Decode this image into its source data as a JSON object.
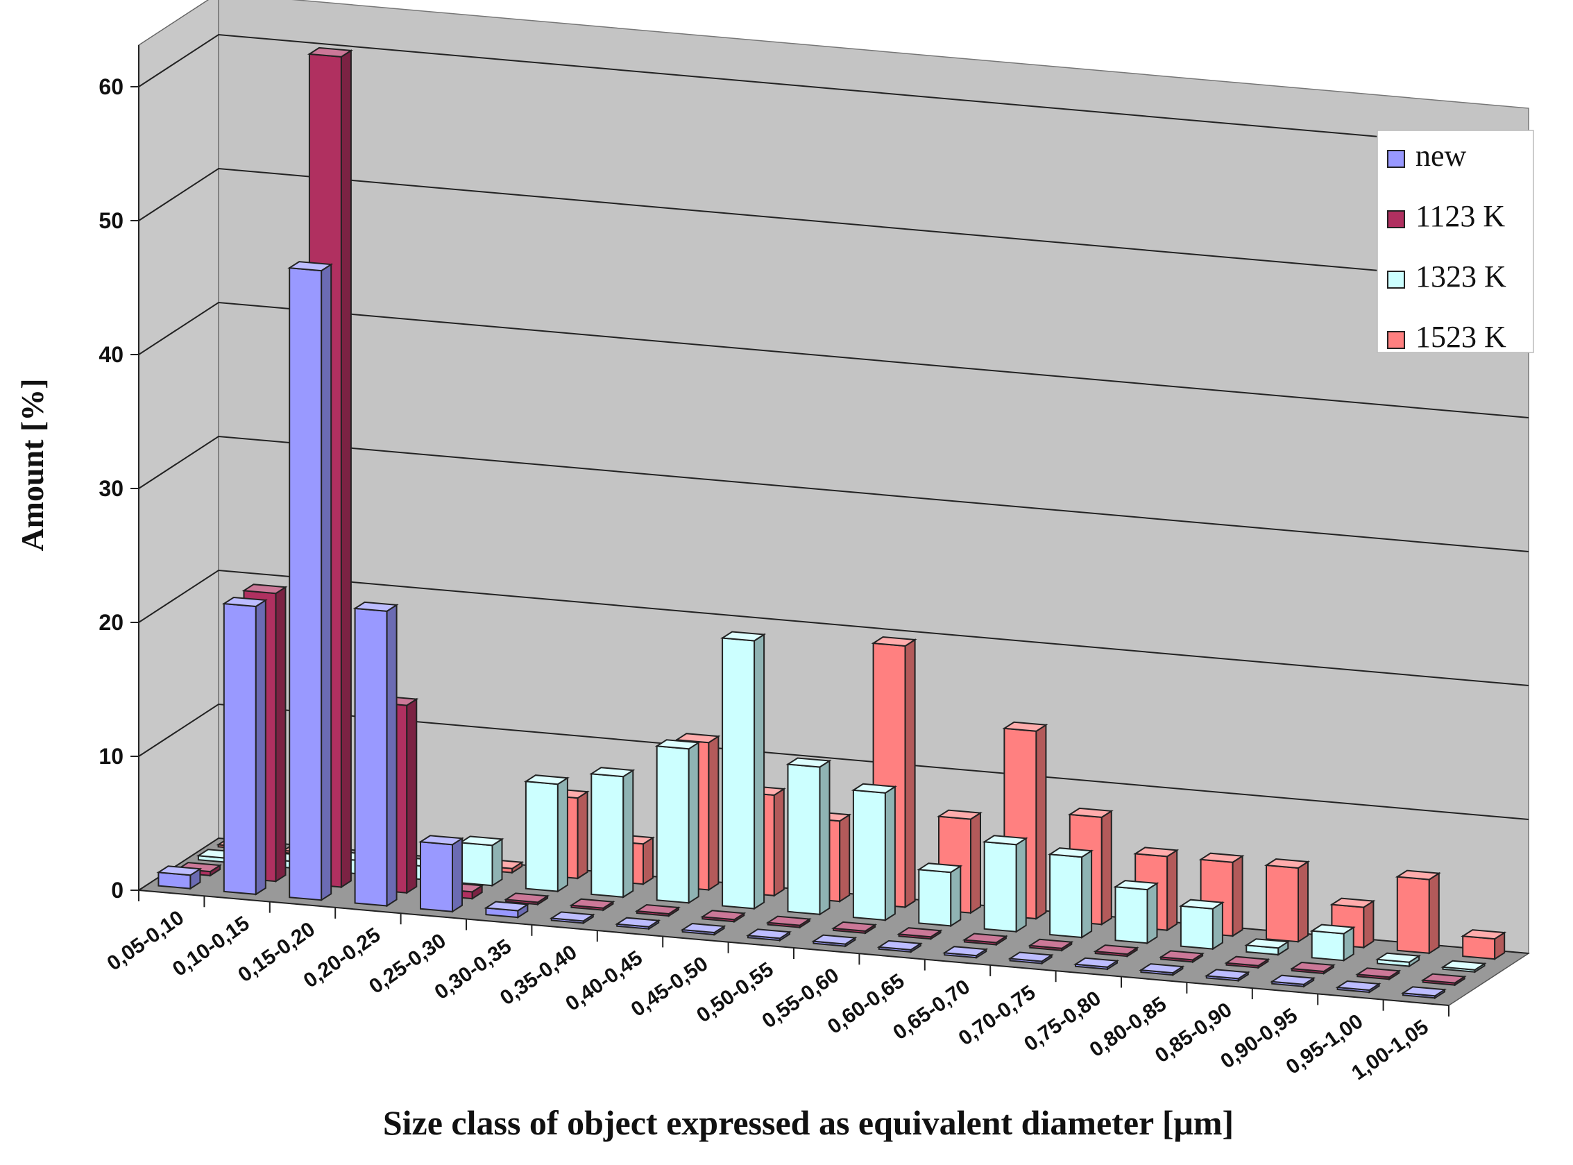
{
  "chart_data": {
    "type": "bar",
    "subtype": "3d-clustered-column",
    "xlabel": "Size class of object expressed as equivalent diameter [μm]",
    "ylabel": "Amount [%]",
    "ylim": [
      0,
      60
    ],
    "yticks": [
      0,
      10,
      20,
      30,
      40,
      50,
      60
    ],
    "grid": true,
    "legend_position": "top-right",
    "categories": [
      "0,05-0,10",
      "0,10-0,15",
      "0,15-0,20",
      "0,20-0,25",
      "0,25-0,30",
      "0,30-0,35",
      "0,35-0,40",
      "0,40-0,45",
      "0,45-0,50",
      "0,50-0,55",
      "0,55-0,60",
      "0,60-0,65",
      "0,65-0,70",
      "0,70-0,75",
      "0,75-0,80",
      "0,80-0,85",
      "0,85-0,90",
      "0,90-0,95",
      "0,95-1,00",
      "1,00-1,05"
    ],
    "series": [
      {
        "name": "new",
        "color": "#9999ff",
        "values": [
          1,
          21.5,
          47,
          22,
          5,
          0.5,
          0,
          0,
          0,
          0,
          0,
          0,
          0,
          0,
          0,
          0,
          0,
          0,
          0,
          0
        ]
      },
      {
        "name": "1123 K",
        "color": "#b03060",
        "values": [
          0.3,
          21.5,
          62,
          14,
          0.5,
          0,
          0,
          0,
          0,
          0,
          0,
          0,
          0,
          0,
          0,
          0,
          0,
          0,
          0,
          0
        ]
      },
      {
        "name": "1323 K",
        "color": "#ccffff",
        "values": [
          0.3,
          0.5,
          1,
          1,
          3,
          8,
          9,
          11.5,
          20,
          11,
          9.5,
          4,
          6.5,
          6,
          4,
          3,
          0.5,
          2,
          0.3,
          0
        ]
      },
      {
        "name": "1523 K",
        "color": "#ff8080",
        "values": [
          0,
          0,
          0,
          0,
          0.3,
          6,
          3,
          11,
          7.5,
          6,
          19.5,
          7,
          14,
          8,
          5.5,
          5.5,
          5.5,
          3,
          5.5,
          1.5
        ]
      }
    ]
  }
}
